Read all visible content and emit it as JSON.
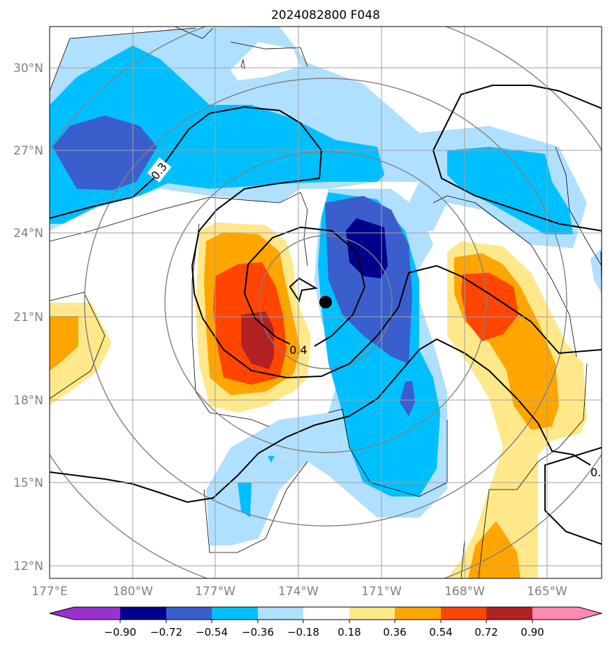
{
  "title": "2024082800 F048",
  "x_ticks": [
    "177°E",
    "180°W",
    "177°W",
    "174°W",
    "171°W",
    "168°W",
    "165°W"
  ],
  "y_ticks": [
    "30°N",
    "27°N",
    "24°N",
    "21°N",
    "18°N",
    "15°N",
    "12°N"
  ],
  "contour_labels": [
    "0.3",
    "0.4",
    "0."
  ],
  "colorbar": {
    "labels": [
      "−0.90",
      "−0.72",
      "−0.54",
      "−0.36",
      "−0.18",
      "0.18",
      "0.36",
      "0.54",
      "0.72",
      "0.90"
    ],
    "colors": [
      "#9932cc",
      "#00008b",
      "#3a5fcd",
      "#00bfff",
      "#b0e0ff",
      "#ffffff",
      "#ffe88a",
      "#ffa500",
      "#ff4500",
      "#b22222",
      "#ff88b4"
    ]
  },
  "map": {
    "lon_range": [
      "177°E",
      "163°W"
    ],
    "lat_range": [
      "11.5°N",
      "31.5°N"
    ],
    "storm_center": {
      "lon": "-172.8",
      "lat": "21.5"
    }
  }
}
